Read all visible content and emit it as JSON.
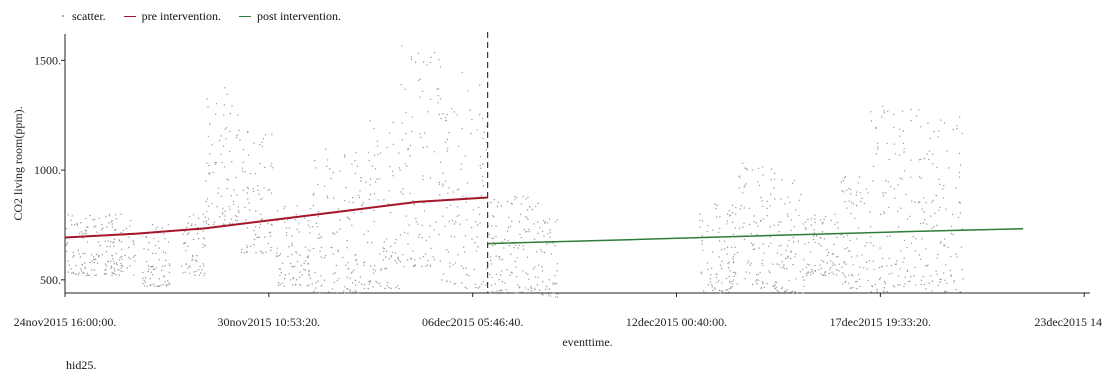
{
  "chart_data": {
    "type": "scatter",
    "ylabel": "CO2 living room(ppm).",
    "xlabel": "eventtime.",
    "footnote": "hid25.",
    "legend": {
      "placement": "top-left",
      "items": [
        {
          "name": "scatter.",
          "color": "#999999",
          "kind": "dot"
        },
        {
          "name": "pre intervention.",
          "color": "#a3162a",
          "kind": "line"
        },
        {
          "name": "post intervention.",
          "color": "#2e7d3a",
          "kind": "line"
        }
      ]
    },
    "ylim": [
      440,
      1620
    ],
    "y_ticks": [
      {
        "value": 500,
        "label": "500."
      },
      {
        "value": 1000,
        "label": "1000."
      },
      {
        "value": 1500,
        "label": "1500."
      }
    ],
    "x_domain_days": [
      0,
      29.1
    ],
    "x_ticks": [
      {
        "day": 0,
        "label": "24nov2015 16:00:00."
      },
      {
        "day": 5.787,
        "label": "30nov2015 10:53:20."
      },
      {
        "day": 11.574,
        "label": "06dec2015 05:46:40."
      },
      {
        "day": 17.361,
        "label": "12dec2015 00:40:00."
      },
      {
        "day": 23.148,
        "label": "17dec2015 19:33:20."
      },
      {
        "day": 28.935,
        "label": "23dec2015 14"
      }
    ],
    "intervention_day": 12.0,
    "grid": false,
    "series": [
      {
        "name": "pre intervention.",
        "color": "#a3162a",
        "x": [
          0,
          2,
          4,
          6,
          8,
          10,
          12
        ],
        "y": [
          693,
          710,
          735,
          775,
          815,
          855,
          875
        ]
      },
      {
        "name": "post intervention.",
        "color": "#2e7d3a",
        "x": [
          12,
          16,
          20,
          24,
          27.2
        ],
        "y": [
          665,
          683,
          702,
          720,
          733
        ]
      }
    ],
    "scatter": {
      "color": "#999999",
      "segments": [
        [
          0.0,
          2.0,
          520,
          800
        ],
        [
          2.2,
          3.0,
          470,
          770
        ],
        [
          3.3,
          4.0,
          520,
          800
        ],
        [
          4.0,
          5.0,
          750,
          1410
        ],
        [
          5.0,
          5.9,
          620,
          1200
        ],
        [
          6.0,
          7.0,
          470,
          860
        ],
        [
          7.0,
          8.5,
          440,
          1100
        ],
        [
          8.5,
          9.5,
          460,
          1230
        ],
        [
          9.5,
          10.7,
          560,
          1590
        ],
        [
          10.7,
          12.0,
          460,
          1450
        ],
        [
          12.0,
          13.5,
          440,
          880
        ],
        [
          13.5,
          14.0,
          420,
          780
        ],
        [
          18.0,
          19.0,
          440,
          860
        ],
        [
          19.0,
          20.2,
          460,
          1040
        ],
        [
          20.2,
          21.0,
          440,
          960
        ],
        [
          21.0,
          22.0,
          520,
          800
        ],
        [
          22.0,
          22.8,
          460,
          1000
        ],
        [
          22.8,
          23.6,
          440,
          1300
        ],
        [
          23.6,
          24.4,
          470,
          1280
        ],
        [
          24.4,
          25.5,
          440,
          1250
        ]
      ]
    }
  }
}
